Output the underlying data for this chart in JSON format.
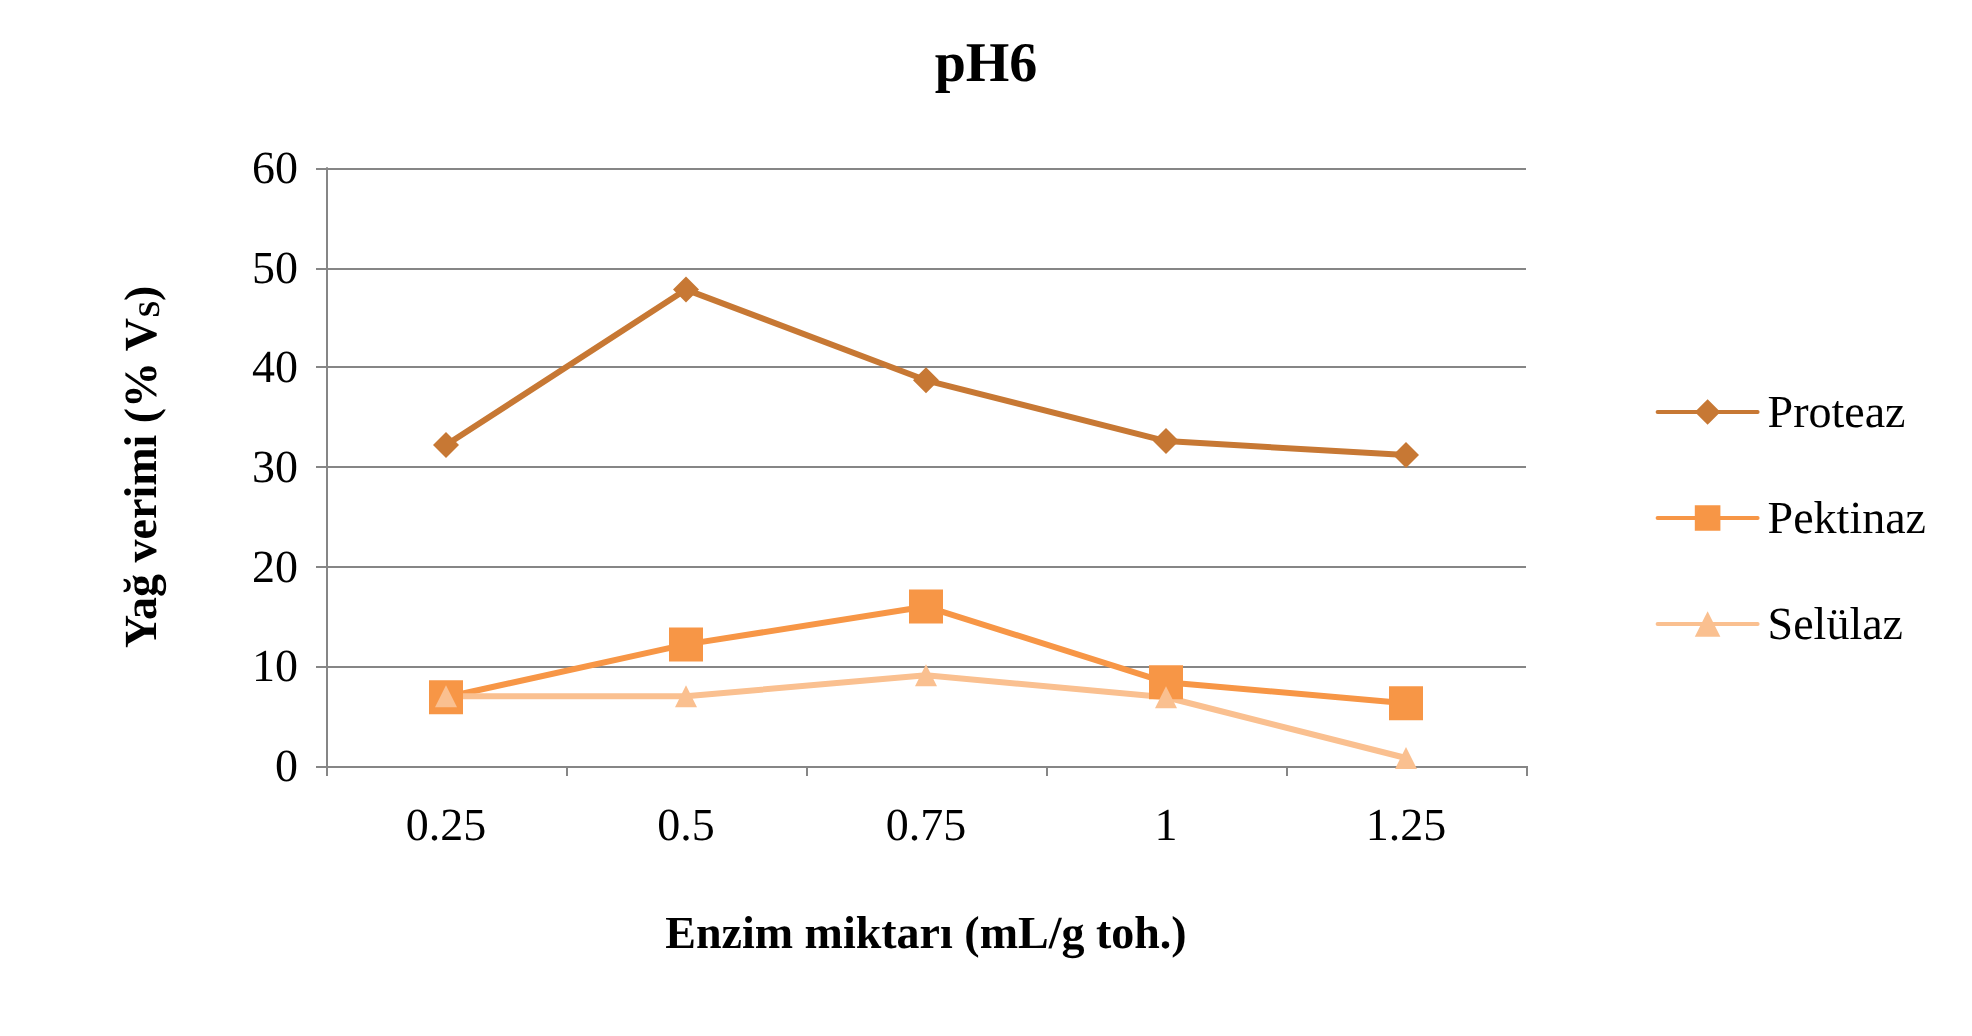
{
  "chart_data": {
    "type": "line",
    "title": "pH6",
    "xlabel": "Enzim miktarı (mL/g toh.)",
    "ylabel": "Yağ verimi (% V$_{S}$)",
    "categories": [
      "0.25",
      "0.5",
      "0.75",
      "1",
      "1.25"
    ],
    "series": [
      {
        "name": "Proteaz",
        "color": "#c77834",
        "marker": "diamond",
        "values": [
          32.2,
          47.8,
          38.7,
          32.6,
          31.2
        ]
      },
      {
        "name": "Pektinaz",
        "color": "#f79646",
        "marker": "square",
        "values": [
          6.9,
          12.2,
          16.0,
          8.4,
          6.3
        ]
      },
      {
        "name": "Selülaz",
        "color": "#fac090",
        "marker": "triangle",
        "values": [
          7.0,
          7.0,
          9.1,
          6.9,
          0.8
        ]
      }
    ],
    "ylim": [
      0,
      60
    ],
    "yticks": [
      0,
      10,
      20,
      30,
      40,
      50,
      60
    ],
    "grid": "y",
    "legend": "right",
    "line_style": "solid"
  }
}
